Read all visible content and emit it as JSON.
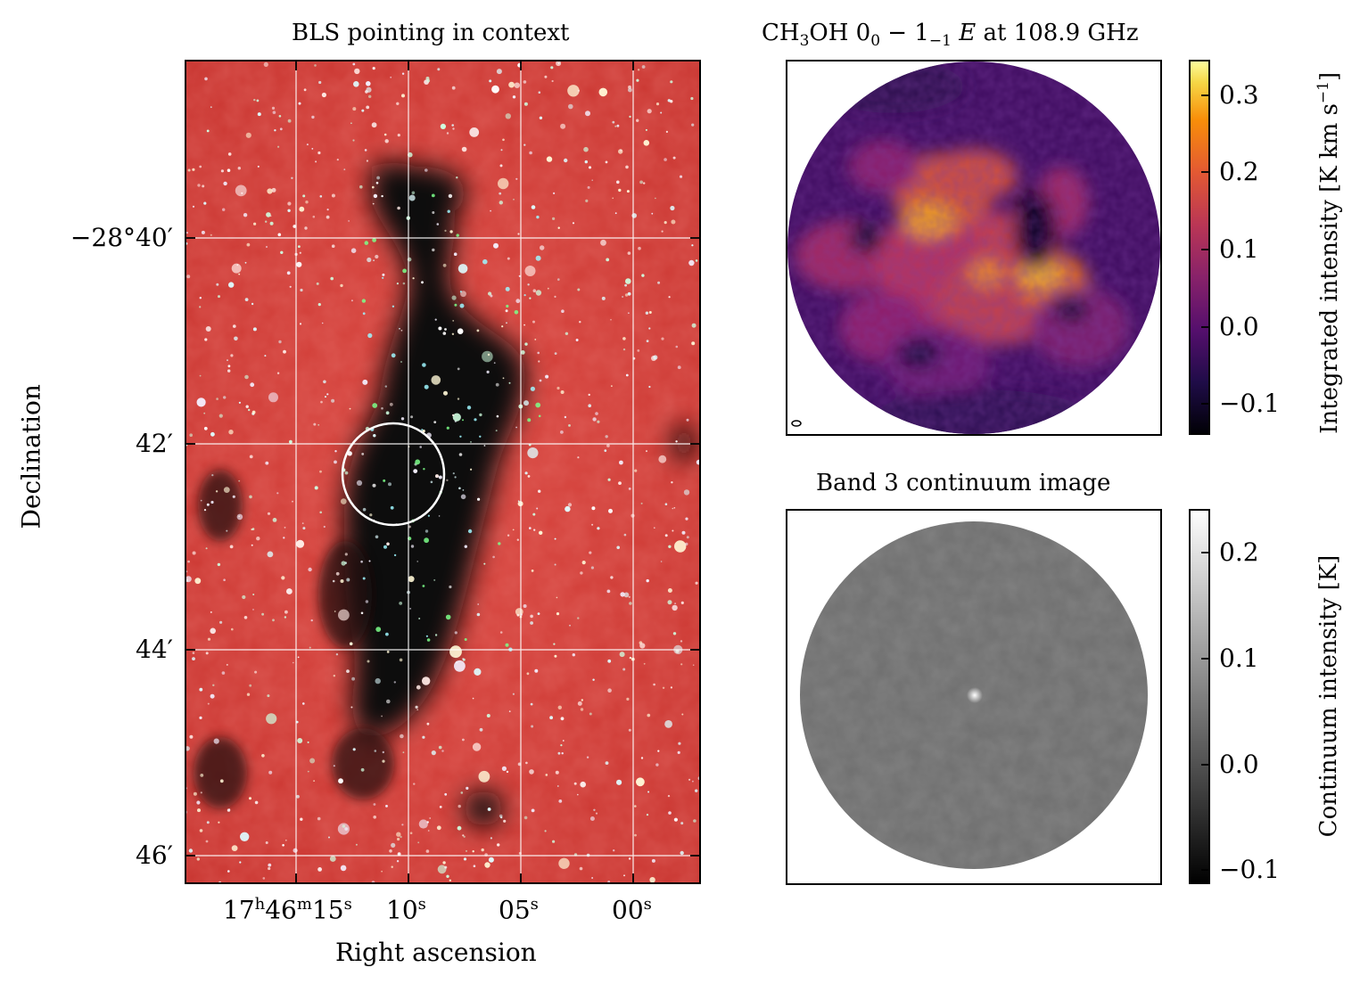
{
  "figure": {
    "panels": [
      {
        "title": "BLS pointing in context",
        "xlabel": "Right ascension",
        "ylabel": "Declination",
        "xticks": [
          "15",
          "10",
          "05",
          "00"
        ],
        "xtick_prefix": {
          "hours": "17",
          "h_unit": "h",
          "minutes": "46",
          "m_unit": "m"
        },
        "xtick_unit": "s",
        "yticks": [
          "−28°40′",
          "42′",
          "44′",
          "46′"
        ],
        "colors": {
          "background": "#d8403a",
          "dark_cloud": "#0c0c10",
          "grid": "#ffffff",
          "circle": "#ffffff"
        }
      },
      {
        "title_parts": [
          "CH",
          "3",
          "OH 0",
          "0",
          " − 1",
          "−1",
          " E",
          " at 108.9 GHz"
        ],
        "colorbar_label": "Integrated intensity [K km s−1]",
        "colorbar_label_base": "Integrated intensity [K km s",
        "colorbar_label_sup": "−1",
        "colorbar_label_end": "]",
        "colorbar_ticks": [
          "0.3",
          "0.2",
          "0.1",
          "0.0",
          "−0.1"
        ],
        "colormap": "inferno"
      },
      {
        "title": "Band 3 continuum image",
        "colorbar_label": "Continuum intensity [K]",
        "colorbar_ticks": [
          "0.2",
          "0.1",
          "0.0",
          "−0.1"
        ],
        "colormap": "gray"
      }
    ]
  },
  "chart_data": [
    {
      "type": "image",
      "title": "BLS pointing in context",
      "xlabel": "Right ascension",
      "ylabel": "Declination",
      "x_tick_labels": [
        "17h46m15s",
        "10s",
        "05s",
        "00s"
      ],
      "y_tick_labels": [
        "−28°40′",
        "42′",
        "44′",
        "46′"
      ],
      "grid": true
    },
    {
      "type": "heatmap",
      "title": "CH3OH 0_0 − 1_−1 E at 108.9 GHz",
      "colorbar_label": "Integrated intensity [K km s−1]",
      "colorbar_range": [
        -0.14,
        0.345
      ],
      "colorbar_ticks": [
        0.3,
        0.2,
        0.1,
        0.0,
        -0.1
      ],
      "colormap": "inferno"
    },
    {
      "type": "heatmap",
      "title": "Band 3 continuum image",
      "colorbar_label": "Continuum intensity [K]",
      "colorbar_range": [
        -0.115,
        0.24
      ],
      "colorbar_ticks": [
        0.2,
        0.1,
        0.0,
        -0.1
      ],
      "colormap": "gray"
    }
  ]
}
